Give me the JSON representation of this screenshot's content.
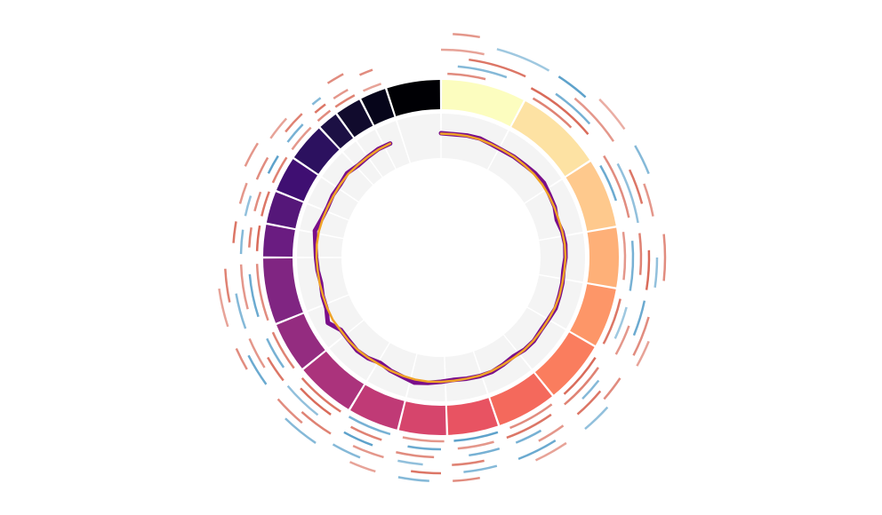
{
  "chart_data": {
    "type": "circos",
    "segments": {
      "sizes": [
        28,
        29,
        23,
        20,
        20,
        21,
        20,
        17,
        16,
        17,
        20,
        17,
        22,
        11,
        11,
        12,
        13,
        7,
        9,
        9,
        18
      ],
      "colors": [
        "#fcfdbf",
        "#fde2a3",
        "#fec98d",
        "#feb078",
        "#fd9668",
        "#fa7d5e",
        "#f4695c",
        "#e85362",
        "#d6456c",
        "#c03a76",
        "#ab337c",
        "#942c80",
        "#802582",
        "#6a1c81",
        "#551779",
        "#3f0f72",
        "#2c115f",
        "#1c1044",
        "#110b2d",
        "#06051a",
        "#000004"
      ]
    },
    "inner_track": {
      "ylim": [
        0,
        1
      ],
      "background": "#f4f4f4",
      "x": [
        0,
        6,
        12,
        18,
        24,
        30,
        36,
        42,
        48,
        54,
        60,
        66,
        72,
        78,
        84,
        90,
        96,
        102,
        108,
        114,
        120,
        126,
        132,
        138,
        144,
        150,
        156,
        162,
        168,
        174,
        180,
        186,
        192,
        198,
        204,
        210,
        216,
        222,
        228,
        234,
        240,
        246,
        252,
        258,
        264,
        270,
        276,
        282,
        288,
        294,
        300,
        306,
        312,
        318,
        324,
        330,
        336
      ],
      "series": [
        {
          "color": "#7a0f8a",
          "values": [
            0.56,
            0.55,
            0.57,
            0.58,
            0.55,
            0.54,
            0.56,
            0.57,
            0.6,
            0.62,
            0.58,
            0.56,
            0.5,
            0.55,
            0.57,
            0.56,
            0.53,
            0.55,
            0.56,
            0.58,
            0.55,
            0.54,
            0.57,
            0.56,
            0.52,
            0.55,
            0.58,
            0.57,
            0.55,
            0.53,
            0.56,
            0.6,
            0.64,
            0.58,
            0.55,
            0.5,
            0.56,
            0.58,
            0.55,
            0.54,
            0.7,
            0.58,
            0.56,
            0.52,
            0.55,
            0.57,
            0.6,
            0.66,
            0.58,
            0.55,
            0.57,
            0.56,
            0.6,
            0.55,
            0.56,
            0.58,
            0.57
          ]
        },
        {
          "color": "#f0a326",
          "values": [
            0.55,
            0.55,
            0.56,
            0.56,
            0.55,
            0.55,
            0.56,
            0.56,
            0.57,
            0.57,
            0.56,
            0.55,
            0.54,
            0.55,
            0.56,
            0.56,
            0.55,
            0.55,
            0.56,
            0.56,
            0.55,
            0.55,
            0.56,
            0.56,
            0.55,
            0.55,
            0.56,
            0.56,
            0.55,
            0.55,
            0.56,
            0.57,
            0.57,
            0.56,
            0.55,
            0.54,
            0.55,
            0.56,
            0.56,
            0.55,
            0.57,
            0.56,
            0.55,
            0.55,
            0.55,
            0.56,
            0.57,
            0.57,
            0.56,
            0.55,
            0.55,
            0.56,
            0.57,
            0.56,
            0.56,
            0.57,
            0.57
          ]
        }
      ]
    },
    "outer_track": {
      "positive_color": "#d6604d",
      "negative_color": "#4393c3",
      "features": [
        [
          0,
          2,
          14,
          0.6
        ],
        [
          1,
          5,
          20,
          -0.5
        ],
        [
          2,
          8,
          25,
          0.8
        ],
        [
          3,
          0,
          12,
          0.4
        ],
        [
          4,
          15,
          30,
          -0.3
        ],
        [
          5,
          3,
          10,
          0.5
        ],
        [
          0,
          30,
          45,
          0.7
        ],
        [
          1,
          28,
          50,
          0.9
        ],
        [
          2,
          35,
          48,
          -0.6
        ],
        [
          3,
          40,
          56,
          0.5
        ],
        [
          4,
          33,
          42,
          -0.8
        ],
        [
          5,
          45,
          55,
          0.3
        ],
        [
          0,
          60,
          72,
          -0.7
        ],
        [
          1,
          58,
          78,
          0.6
        ],
        [
          2,
          62,
          80,
          -0.4
        ],
        [
          3,
          65,
          75,
          0.8
        ],
        [
          4,
          70,
          79,
          0.5
        ],
        [
          5,
          60,
          68,
          -0.5
        ],
        [
          0,
          82,
          97,
          0.5
        ],
        [
          1,
          85,
          100,
          -0.6
        ],
        [
          2,
          83,
          95,
          0.7
        ],
        [
          3,
          88,
          99,
          0.9
        ],
        [
          4,
          90,
          98,
          -0.4
        ],
        [
          5,
          84,
          96,
          0.6
        ],
        [
          0,
          103,
          118,
          0.8
        ],
        [
          1,
          105,
          115,
          -0.3
        ],
        [
          2,
          110,
          119,
          0.5
        ],
        [
          3,
          102,
          112,
          -0.7
        ],
        [
          4,
          106,
          117,
          0.6
        ],
        [
          5,
          112,
          119,
          0.4
        ],
        [
          0,
          123,
          138,
          0.9
        ],
        [
          1,
          125,
          140,
          0.7
        ],
        [
          2,
          128,
          135,
          -0.5
        ],
        [
          3,
          130,
          139,
          0.8
        ],
        [
          4,
          124,
          131,
          0.6
        ],
        [
          5,
          132,
          140,
          -0.4
        ],
        [
          0,
          143,
          158,
          0.6
        ],
        [
          1,
          145,
          160,
          0.8
        ],
        [
          2,
          150,
          158,
          -0.6
        ],
        [
          3,
          144,
          152,
          0.5
        ],
        [
          4,
          148,
          159,
          -0.7
        ],
        [
          5,
          146,
          155,
          0.4
        ],
        [
          0,
          162,
          176,
          -0.8
        ],
        [
          1,
          164,
          175,
          0.5
        ],
        [
          2,
          163,
          172,
          -0.6
        ],
        [
          3,
          168,
          177,
          0.7
        ],
        [
          4,
          165,
          174,
          -0.5
        ],
        [
          5,
          170,
          177,
          0.6
        ],
        [
          0,
          179,
          192,
          0.5
        ],
        [
          1,
          180,
          190,
          -0.7
        ],
        [
          2,
          182,
          193,
          0.6
        ],
        [
          3,
          185,
          192,
          -0.4
        ],
        [
          4,
          180,
          188,
          0.8
        ],
        [
          5,
          183,
          191,
          -0.5
        ],
        [
          0,
          196,
          210,
          -0.6
        ],
        [
          1,
          198,
          208,
          0.7
        ],
        [
          2,
          200,
          209,
          -0.8
        ],
        [
          3,
          196,
          205,
          0.5
        ],
        [
          4,
          202,
          210,
          -0.5
        ],
        [
          5,
          197,
          204,
          0.4
        ],
        [
          0,
          213,
          229,
          0.8
        ],
        [
          1,
          215,
          227,
          0.9
        ],
        [
          2,
          218,
          230,
          -0.4
        ],
        [
          3,
          212,
          222,
          0.7
        ],
        [
          4,
          220,
          229,
          0.6
        ],
        [
          5,
          214,
          224,
          -0.5
        ],
        [
          0,
          233,
          246,
          0.7
        ],
        [
          1,
          235,
          245,
          -0.6
        ],
        [
          2,
          232,
          240,
          0.8
        ],
        [
          3,
          238,
          247,
          0.5
        ],
        [
          4,
          234,
          243,
          -0.7
        ],
        [
          5,
          240,
          246,
          0.6
        ],
        [
          0,
          250,
          268,
          0.6
        ],
        [
          1,
          252,
          265,
          -0.7
        ],
        [
          2,
          255,
          268,
          0.5
        ],
        [
          3,
          250,
          260,
          -0.5
        ],
        [
          4,
          258,
          267,
          0.7
        ],
        [
          5,
          252,
          262,
          0.4
        ],
        [
          0,
          272,
          280,
          0.9
        ],
        [
          1,
          273,
          279,
          0.7
        ],
        [
          2,
          271,
          278,
          -0.5
        ],
        [
          3,
          274,
          280,
          0.8
        ],
        [
          0,
          283,
          291,
          0.8
        ],
        [
          1,
          284,
          290,
          0.6
        ],
        [
          2,
          282,
          288,
          -0.4
        ],
        [
          3,
          285,
          291,
          0.5
        ],
        [
          0,
          294,
          303,
          0.7
        ],
        [
          1,
          296,
          302,
          -0.8
        ],
        [
          2,
          293,
          300,
          0.6
        ],
        [
          4,
          295,
          302,
          0.5
        ],
        [
          0,
          306,
          315,
          0.5
        ],
        [
          1,
          307,
          314,
          -0.6
        ],
        [
          2,
          309,
          316,
          0.7
        ],
        [
          3,
          305,
          312,
          0.4
        ],
        [
          0,
          318,
          323,
          0.6
        ],
        [
          1,
          319,
          323,
          0.8
        ],
        [
          2,
          320,
          323,
          -0.5
        ],
        [
          0,
          325,
          332,
          0.7
        ],
        [
          1,
          326,
          331,
          0.5
        ],
        [
          3,
          327,
          332,
          0.6
        ],
        [
          0,
          335,
          341,
          0.4
        ],
        [
          2,
          336,
          340,
          0.6
        ]
      ]
    }
  }
}
